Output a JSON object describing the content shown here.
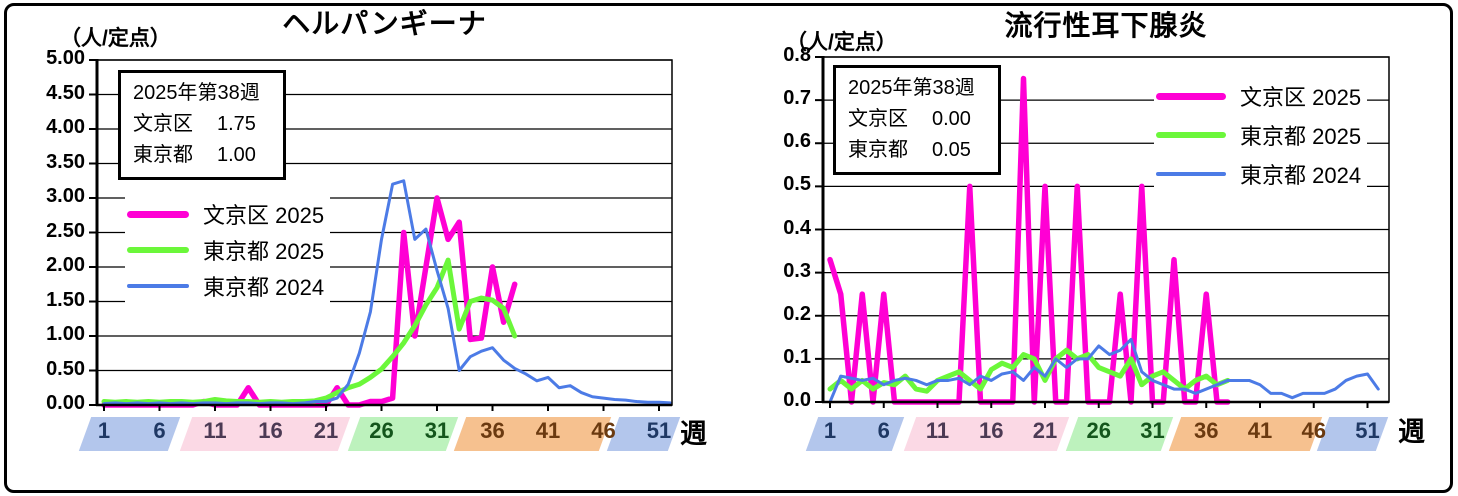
{
  "window": {
    "background": "#ffffff",
    "border_color": "#000000"
  },
  "chart_data": [
    {
      "type": "line",
      "title": "ヘルパンギーナ",
      "unit_label": "（人/定点）",
      "xlabel": "週",
      "ylim": [
        0,
        5
      ],
      "ytick_labels": [
        "5.00",
        "4.50",
        "4.00",
        "3.50",
        "3.00",
        "2.50",
        "2.00",
        "1.50",
        "1.00",
        "0.50",
        "0.00"
      ],
      "xtick_weeks": [
        1,
        6,
        11,
        16,
        21,
        26,
        31,
        36,
        41,
        46,
        51
      ],
      "weeks_total": 52,
      "grid": true,
      "legend_position": "inside-upper-left",
      "info_box": {
        "heading": "2025年第38週",
        "rows": [
          {
            "label": "文京区",
            "value": "1.75"
          },
          {
            "label": "東京都",
            "value": "1.00"
          }
        ]
      },
      "x_bands": [
        {
          "fill": "#B3C6EC",
          "text_color": "#1F3864",
          "from_week": -0.7,
          "to_week": 7.3,
          "labels": [
            "1",
            "6"
          ]
        },
        {
          "fill": "#FBD9E5",
          "text_color": "#4C3A54",
          "from_week": 8.4,
          "to_week": 22.6,
          "labels": [
            "11",
            "16",
            "21"
          ]
        },
        {
          "fill": "#BDF2BD",
          "text_color": "#14561C",
          "from_week": 23.5,
          "to_week": 32.3,
          "labels": [
            "26",
            "31"
          ]
        },
        {
          "fill": "#F6C18F",
          "text_color": "#6B3A10",
          "from_week": 33.1,
          "to_week": 46.2,
          "labels": [
            "36",
            "41",
            "46"
          ]
        },
        {
          "fill": "#B3C6EC",
          "text_color": "#1F3864",
          "from_week": 46.9,
          "to_week": 52.4,
          "labels": [
            "51"
          ]
        }
      ],
      "series": [
        {
          "name": "文京区 2025",
          "color": "#FF00D4",
          "stroke_width": 5.5,
          "values": [
            0,
            0,
            0,
            0,
            0,
            0,
            0,
            0,
            0,
            0.05,
            0,
            0,
            0,
            0.25,
            0,
            0,
            0,
            0,
            0,
            0,
            0,
            0.25,
            0,
            0,
            0.05,
            0.05,
            0.1,
            2.5,
            1.0,
            2.0,
            3.0,
            2.4,
            2.65,
            0.95,
            0.97,
            2.0,
            1.2,
            1.75
          ]
        },
        {
          "name": "東京都 2025",
          "color": "#6BF73A",
          "stroke_width": 5,
          "values": [
            0.05,
            0.04,
            0.05,
            0.04,
            0.05,
            0.04,
            0.05,
            0.05,
            0.04,
            0.05,
            0.08,
            0.06,
            0.05,
            0.05,
            0.04,
            0.05,
            0.04,
            0.05,
            0.05,
            0.06,
            0.1,
            0.18,
            0.25,
            0.3,
            0.4,
            0.52,
            0.7,
            0.9,
            1.15,
            1.45,
            1.7,
            2.1,
            1.1,
            1.5,
            1.55,
            1.52,
            1.4,
            1.0
          ]
        },
        {
          "name": "東京都 2024",
          "color": "#4C7BE6",
          "stroke_width": 3,
          "values": [
            0.02,
            0.03,
            0.02,
            0.03,
            0.02,
            0.03,
            0.02,
            0.03,
            0.02,
            0.03,
            0.03,
            0.02,
            0.03,
            0.03,
            0.02,
            0.03,
            0.03,
            0.02,
            0.03,
            0.05,
            0.05,
            0.1,
            0.3,
            0.75,
            1.35,
            2.4,
            3.2,
            3.25,
            2.4,
            2.55,
            1.95,
            1.4,
            0.5,
            0.7,
            0.78,
            0.83,
            0.65,
            0.53,
            0.45,
            0.35,
            0.4,
            0.25,
            0.28,
            0.18,
            0.12,
            0.1,
            0.08,
            0.07,
            0.05,
            0.04,
            0.04,
            0.03
          ]
        }
      ]
    },
    {
      "type": "line",
      "title": "流行性耳下腺炎",
      "unit_label": "（人/定点）",
      "xlabel": "週",
      "ylim": [
        0,
        0.8
      ],
      "ytick_labels": [
        "0.8",
        "0.7",
        "0.6",
        "0.5",
        "0.4",
        "0.3",
        "0.2",
        "0.1",
        "0.0"
      ],
      "xtick_weeks": [
        1,
        6,
        11,
        16,
        21,
        26,
        31,
        36,
        41,
        46,
        51
      ],
      "weeks_total": 52,
      "grid": true,
      "legend_position": "upper-right",
      "info_box": {
        "heading": "2025年第38週",
        "rows": [
          {
            "label": "文京区",
            "value": "0.00"
          },
          {
            "label": "東京都",
            "value": "0.05"
          }
        ]
      },
      "x_bands": [
        {
          "fill": "#B3C6EC",
          "text_color": "#1F3864",
          "from_week": -0.7,
          "to_week": 7.3,
          "labels": [
            "1",
            "6"
          ]
        },
        {
          "fill": "#FBD9E5",
          "text_color": "#4C3A54",
          "from_week": 8.4,
          "to_week": 22.6,
          "labels": [
            "11",
            "16",
            "21"
          ]
        },
        {
          "fill": "#BDF2BD",
          "text_color": "#14561C",
          "from_week": 23.5,
          "to_week": 32.3,
          "labels": [
            "26",
            "31"
          ]
        },
        {
          "fill": "#F6C18F",
          "text_color": "#6B3A10",
          "from_week": 33.1,
          "to_week": 46.2,
          "labels": [
            "36",
            "41",
            "46"
          ]
        },
        {
          "fill": "#B3C6EC",
          "text_color": "#1F3864",
          "from_week": 46.9,
          "to_week": 52.4,
          "labels": [
            "51"
          ]
        }
      ],
      "series": [
        {
          "name": "文京区 2025",
          "color": "#FF00D4",
          "stroke_width": 5.5,
          "values": [
            0.33,
            0.25,
            0,
            0.25,
            0,
            0.25,
            0,
            0,
            0,
            0,
            0,
            0,
            0,
            0.5,
            0,
            0,
            0,
            0,
            0.75,
            0,
            0.5,
            0,
            0,
            0.5,
            0,
            0,
            0,
            0.25,
            0,
            0.5,
            0,
            0,
            0.33,
            0,
            0,
            0.25,
            0,
            0
          ]
        },
        {
          "name": "東京都 2025",
          "color": "#6BF73A",
          "stroke_width": 5,
          "values": [
            0.03,
            0.05,
            0.03,
            0.05,
            0.03,
            0.045,
            0.04,
            0.06,
            0.03,
            0.025,
            0.05,
            0.06,
            0.07,
            0.05,
            0.03,
            0.075,
            0.09,
            0.08,
            0.11,
            0.1,
            0.05,
            0.1,
            0.12,
            0.1,
            0.11,
            0.08,
            0.07,
            0.06,
            0.1,
            0.04,
            0.06,
            0.07,
            0.05,
            0.03,
            0.05,
            0.06,
            0.04,
            0.05
          ]
        },
        {
          "name": "東京都 2024",
          "color": "#4C7BE6",
          "stroke_width": 3,
          "values": [
            0,
            0.06,
            0.055,
            0.05,
            0.055,
            0.04,
            0.05,
            0.055,
            0.05,
            0.04,
            0.05,
            0.05,
            0.055,
            0.04,
            0.06,
            0.05,
            0.065,
            0.07,
            0.05,
            0.08,
            0.06,
            0.1,
            0.08,
            0.1,
            0.1,
            0.13,
            0.11,
            0.12,
            0.145,
            0.07,
            0.05,
            0.04,
            0.03,
            0.03,
            0.02,
            0.03,
            0.04,
            0.05,
            0.05,
            0.05,
            0.04,
            0.02,
            0.02,
            0.01,
            0.02,
            0.02,
            0.02,
            0.03,
            0.05,
            0.06,
            0.065,
            0.03
          ]
        }
      ]
    }
  ]
}
